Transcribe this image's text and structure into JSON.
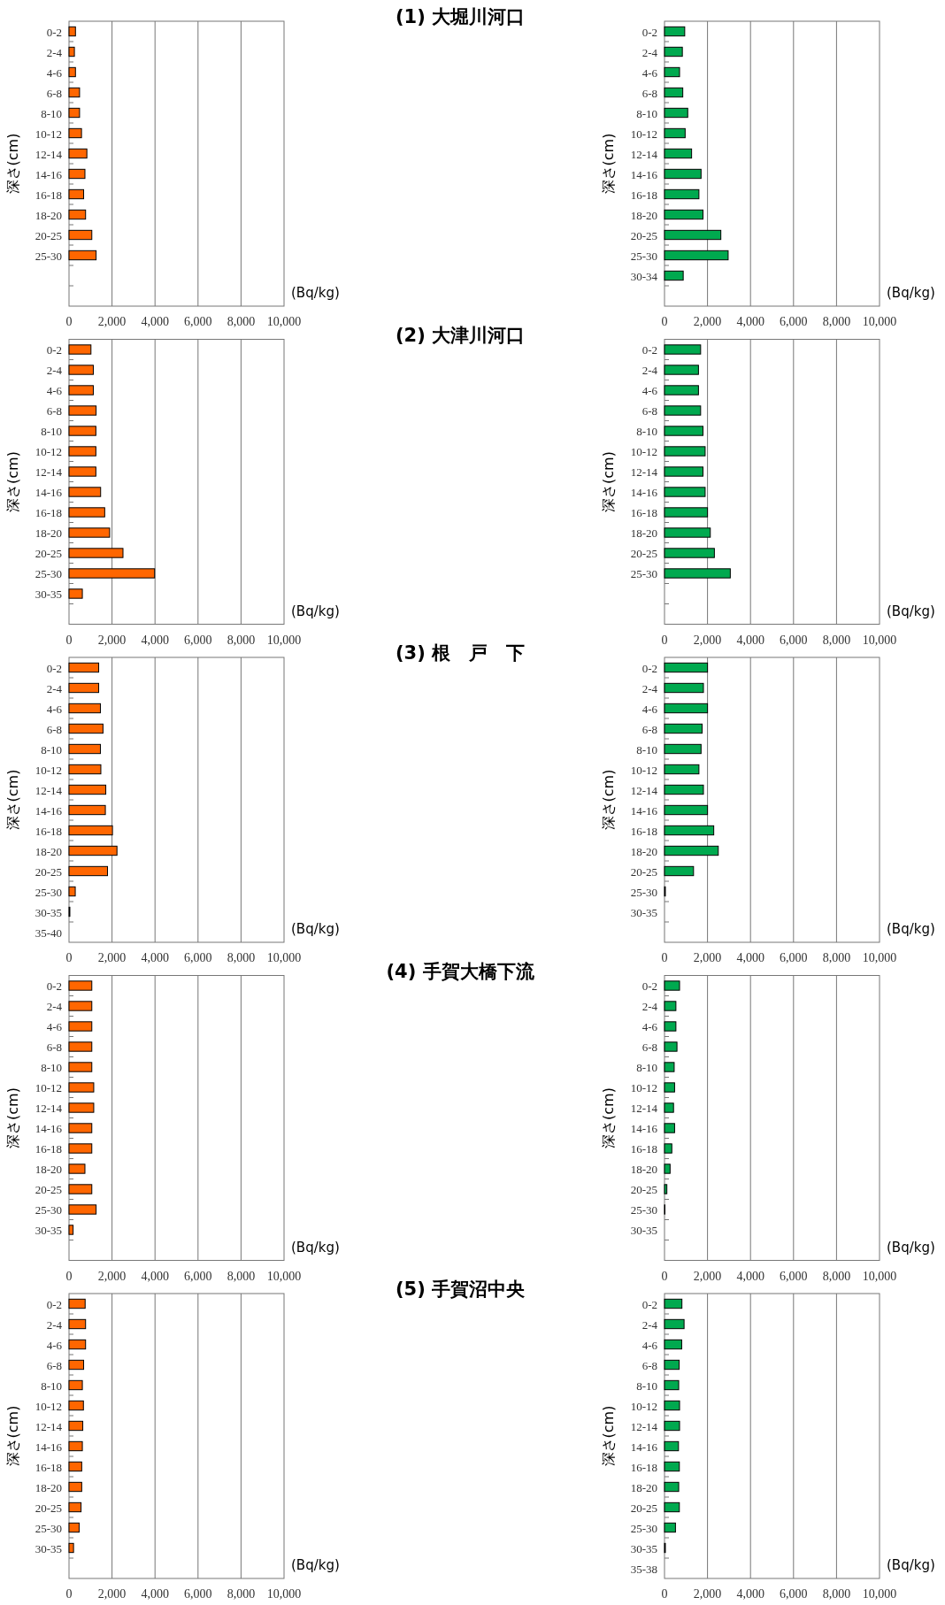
{
  "chart_data": [
    {
      "type": "other",
      "title": "(1) 大堀川河口"
    },
    {
      "type": "bar",
      "orientation": "horizontal",
      "ylabel": "深さ(cm)",
      "xlabel": "(Bq/kg)",
      "color": "#ff6600",
      "grid": "x",
      "xlim": [
        0,
        10000
      ],
      "xticks": [
        {
          "value": 0,
          "label": "0"
        },
        {
          "value": 2000,
          "label": "2,000"
        },
        {
          "value": 4000,
          "label": "4,000"
        },
        {
          "value": 6000,
          "label": "6,000"
        },
        {
          "value": 8000,
          "label": "8,000"
        },
        {
          "value": 10000,
          "label": "10,000"
        }
      ],
      "categories": [
        "0-2",
        "2-4",
        "4-6",
        "6-8",
        "8-10",
        "10-12",
        "12-14",
        "14-16",
        "16-18",
        "18-20",
        "20-25",
        "25-30",
        null,
        null
      ],
      "values": [
        300,
        250,
        300,
        490,
        490,
        580,
        830,
        740,
        680,
        770,
        1060,
        1260,
        null,
        null
      ]
    },
    {
      "type": "bar",
      "orientation": "horizontal",
      "ylabel": "深さ(cm)",
      "xlabel": "(Bq/kg)",
      "color": "#00a94f",
      "grid": "x",
      "xlim": [
        0,
        10000
      ],
      "xticks": [
        {
          "value": 0,
          "label": "0"
        },
        {
          "value": 2000,
          "label": "2,000"
        },
        {
          "value": 4000,
          "label": "4,000"
        },
        {
          "value": 6000,
          "label": "6,000"
        },
        {
          "value": 8000,
          "label": "8,000"
        },
        {
          "value": 10000,
          "label": "10,000"
        }
      ],
      "categories": [
        "0-2",
        "2-4",
        "4-6",
        "6-8",
        "8-10",
        "10-12",
        "12-14",
        "14-16",
        "16-18",
        "18-20",
        "20-25",
        "25-30",
        "30-34",
        null
      ],
      "values": [
        940,
        830,
        700,
        850,
        1080,
        960,
        1260,
        1700,
        1600,
        1790,
        2620,
        2960,
        870,
        null
      ]
    },
    {
      "type": "other",
      "title": "(2) 大津川河口"
    },
    {
      "type": "bar",
      "orientation": "horizontal",
      "ylabel": "深さ(cm)",
      "xlabel": "(Bq/kg)",
      "color": "#ff6600",
      "grid": "x",
      "xlim": [
        0,
        10000
      ],
      "xticks": [
        {
          "value": 0,
          "label": "0"
        },
        {
          "value": 2000,
          "label": "2,000"
        },
        {
          "value": 4000,
          "label": "4,000"
        },
        {
          "value": 6000,
          "label": "6,000"
        },
        {
          "value": 8000,
          "label": "8,000"
        },
        {
          "value": 10000,
          "label": "10,000"
        }
      ],
      "categories": [
        "0-2",
        "2-4",
        "4-6",
        "6-8",
        "8-10",
        "10-12",
        "12-14",
        "14-16",
        "16-18",
        "18-20",
        "20-25",
        "25-30",
        "30-35",
        null
      ],
      "values": [
        1020,
        1130,
        1130,
        1260,
        1250,
        1250,
        1250,
        1470,
        1660,
        1890,
        2510,
        3980,
        620,
        null
      ]
    },
    {
      "type": "bar",
      "orientation": "horizontal",
      "ylabel": "深さ(cm)",
      "xlabel": "(Bq/kg)",
      "color": "#00a94f",
      "grid": "x",
      "xlim": [
        0,
        10000
      ],
      "xticks": [
        {
          "value": 0,
          "label": "0"
        },
        {
          "value": 2000,
          "label": "2,000"
        },
        {
          "value": 4000,
          "label": "4,000"
        },
        {
          "value": 6000,
          "label": "6,000"
        },
        {
          "value": 8000,
          "label": "8,000"
        },
        {
          "value": 10000,
          "label": "10,000"
        }
      ],
      "categories": [
        "0-2",
        "2-4",
        "4-6",
        "6-8",
        "8-10",
        "10-12",
        "12-14",
        "14-16",
        "16-18",
        "18-20",
        "20-25",
        "25-30",
        null,
        null
      ],
      "values": [
        1680,
        1580,
        1580,
        1680,
        1790,
        1890,
        1790,
        1890,
        2000,
        2130,
        2320,
        3060,
        null,
        null
      ]
    },
    {
      "type": "other",
      "title": "(3) 根　戸　下"
    },
    {
      "type": "bar",
      "orientation": "horizontal",
      "ylabel": "深さ(cm)",
      "xlabel": "(Bq/kg)",
      "color": "#ff6600",
      "grid": "x",
      "xlim": [
        0,
        10000
      ],
      "xticks": [
        {
          "value": 0,
          "label": "0"
        },
        {
          "value": 2000,
          "label": "2,000"
        },
        {
          "value": 4000,
          "label": "4,000"
        },
        {
          "value": 6000,
          "label": "6,000"
        },
        {
          "value": 8000,
          "label": "8,000"
        },
        {
          "value": 10000,
          "label": "10,000"
        }
      ],
      "categories": [
        "0-2",
        "2-4",
        "4-6",
        "6-8",
        "8-10",
        "10-12",
        "12-14",
        "14-16",
        "16-18",
        "18-20",
        "20-25",
        "25-30",
        "30-35",
        "35-40"
      ],
      "values": [
        1380,
        1380,
        1460,
        1580,
        1460,
        1480,
        1710,
        1690,
        2020,
        2230,
        1790,
        290,
        40,
        null
      ]
    },
    {
      "type": "bar",
      "orientation": "horizontal",
      "ylabel": "深さ(cm)",
      "xlabel": "(Bq/kg)",
      "color": "#00a94f",
      "grid": "x",
      "xlim": [
        0,
        10000
      ],
      "xticks": [
        {
          "value": 0,
          "label": "0"
        },
        {
          "value": 2000,
          "label": "2,000"
        },
        {
          "value": 4000,
          "label": "4,000"
        },
        {
          "value": 6000,
          "label": "6,000"
        },
        {
          "value": 8000,
          "label": "8,000"
        },
        {
          "value": 10000,
          "label": "10,000"
        }
      ],
      "categories": [
        "0-2",
        "2-4",
        "4-6",
        "6-8",
        "8-10",
        "10-12",
        "12-14",
        "14-16",
        "16-18",
        "18-20",
        "20-25",
        "25-30",
        "30-35",
        null
      ],
      "values": [
        2000,
        1810,
        2000,
        1750,
        1700,
        1600,
        1810,
        2000,
        2290,
        2500,
        1350,
        40,
        null,
        null
      ]
    },
    {
      "type": "other",
      "title": "(4) 手賀大橋下流"
    },
    {
      "type": "bar",
      "orientation": "horizontal",
      "ylabel": "深さ(cm)",
      "xlabel": "(Bq/kg)",
      "color": "#ff6600",
      "grid": "x",
      "xlim": [
        0,
        10000
      ],
      "xticks": [
        {
          "value": 0,
          "label": "0"
        },
        {
          "value": 2000,
          "label": "2,000"
        },
        {
          "value": 4000,
          "label": "4,000"
        },
        {
          "value": 6000,
          "label": "6,000"
        },
        {
          "value": 8000,
          "label": "8,000"
        },
        {
          "value": 10000,
          "label": "10,000"
        }
      ],
      "categories": [
        "0-2",
        "2-4",
        "4-6",
        "6-8",
        "8-10",
        "10-12",
        "12-14",
        "14-16",
        "16-18",
        "18-20",
        "20-25",
        "25-30",
        "30-35",
        null
      ],
      "values": [
        1060,
        1060,
        1060,
        1060,
        1060,
        1150,
        1150,
        1060,
        1060,
        740,
        1060,
        1260,
        190,
        null
      ]
    },
    {
      "type": "bar",
      "orientation": "horizontal",
      "ylabel": "深さ(cm)",
      "xlabel": "(Bq/kg)",
      "color": "#00a94f",
      "grid": "x",
      "xlim": [
        0,
        10000
      ],
      "xticks": [
        {
          "value": 0,
          "label": "0"
        },
        {
          "value": 2000,
          "label": "2,000"
        },
        {
          "value": 4000,
          "label": "4,000"
        },
        {
          "value": 6000,
          "label": "6,000"
        },
        {
          "value": 8000,
          "label": "8,000"
        },
        {
          "value": 10000,
          "label": "10,000"
        }
      ],
      "categories": [
        "0-2",
        "2-4",
        "4-6",
        "6-8",
        "8-10",
        "10-12",
        "12-14",
        "14-16",
        "16-18",
        "18-20",
        "20-25",
        "25-30",
        "30-35",
        null
      ],
      "values": [
        700,
        530,
        530,
        580,
        450,
        470,
        420,
        470,
        340,
        260,
        110,
        20,
        null,
        null
      ]
    },
    {
      "type": "other",
      "title": "(5) 手賀沼中央"
    },
    {
      "type": "bar",
      "orientation": "horizontal",
      "ylabel": "深さ(cm)",
      "xlabel": "(Bq/kg)",
      "color": "#ff6600",
      "grid": "x",
      "xlim": [
        0,
        10000
      ],
      "xticks": [
        {
          "value": 0,
          "label": "0"
        },
        {
          "value": 2000,
          "label": "2,000"
        },
        {
          "value": 4000,
          "label": "4,000"
        },
        {
          "value": 6000,
          "label": "6,000"
        },
        {
          "value": 8000,
          "label": "8,000"
        },
        {
          "value": 10000,
          "label": "10,000"
        }
      ],
      "categories": [
        "0-2",
        "2-4",
        "4-6",
        "6-8",
        "8-10",
        "10-12",
        "12-14",
        "14-16",
        "16-18",
        "18-20",
        "20-25",
        "25-30",
        "30-35",
        null
      ],
      "values": [
        750,
        770,
        770,
        680,
        620,
        670,
        640,
        620,
        590,
        590,
        560,
        470,
        210,
        null
      ]
    },
    {
      "type": "bar",
      "orientation": "horizontal",
      "ylabel": "深さ(cm)",
      "xlabel": "(Bq/kg)",
      "color": "#00a94f",
      "grid": "x",
      "xlim": [
        0,
        10000
      ],
      "xticks": [
        {
          "value": 0,
          "label": "0"
        },
        {
          "value": 2000,
          "label": "2,000"
        },
        {
          "value": 4000,
          "label": "4,000"
        },
        {
          "value": 6000,
          "label": "6,000"
        },
        {
          "value": 8000,
          "label": "8,000"
        },
        {
          "value": 10000,
          "label": "10,000"
        }
      ],
      "categories": [
        "0-2",
        "2-4",
        "4-6",
        "6-8",
        "8-10",
        "10-12",
        "12-14",
        "14-16",
        "16-18",
        "18-20",
        "20-25",
        "25-30",
        "30-35",
        "35-38"
      ],
      "values": [
        810,
        910,
        800,
        680,
        660,
        700,
        700,
        650,
        690,
        660,
        690,
        510,
        40,
        null
      ]
    }
  ]
}
